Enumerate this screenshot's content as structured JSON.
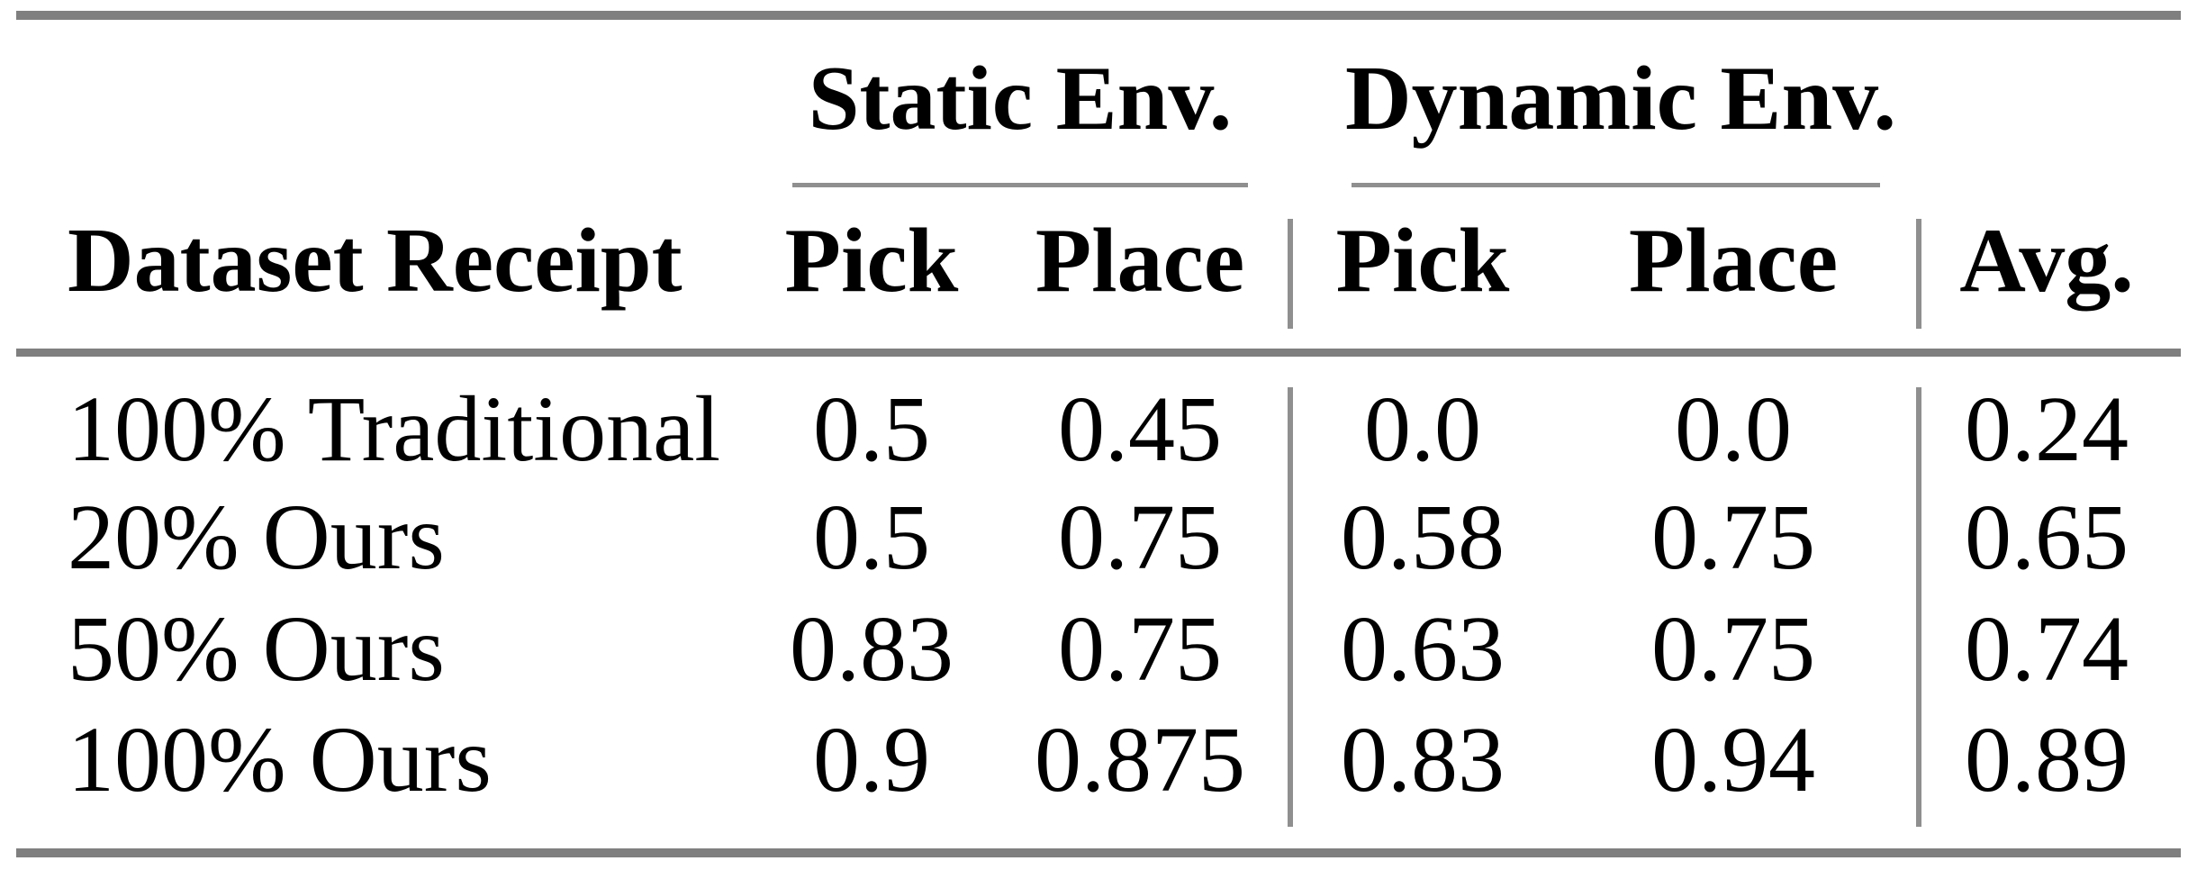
{
  "table": {
    "title_semantics": "Pick and place success rates by dataset receipt",
    "colors": {
      "background": "#ffffff",
      "text": "#000000",
      "thick_rule_gray": "#7f7f7f",
      "thin_rule_gray": "#8f8f8f"
    },
    "column_groups": {
      "static": "Static Env.",
      "dynamic": "Dynamic Env."
    },
    "header": {
      "row_label": "Dataset Receipt",
      "static_pick": "Pick",
      "static_place": "Place",
      "dynamic_pick": "Pick",
      "dynamic_place": "Place",
      "avg": "Avg."
    },
    "rows": [
      {
        "label": "100% Traditional",
        "static_pick": "0.5",
        "static_place": "0.45",
        "dynamic_pick": "0.0",
        "dynamic_place": "0.0",
        "avg": "0.24"
      },
      {
        "label": "20% Ours",
        "static_pick": "0.5",
        "static_place": "0.75",
        "dynamic_pick": "0.58",
        "dynamic_place": "0.75",
        "avg": "0.65"
      },
      {
        "label": "50% Ours",
        "static_pick": "0.83",
        "static_place": "0.75",
        "dynamic_pick": "0.63",
        "dynamic_place": "0.75",
        "avg": "0.74"
      },
      {
        "label": "100% Ours",
        "static_pick": "0.9",
        "static_place": "0.875",
        "dynamic_pick": "0.83",
        "dynamic_place": "0.94",
        "avg": "0.89"
      }
    ]
  }
}
